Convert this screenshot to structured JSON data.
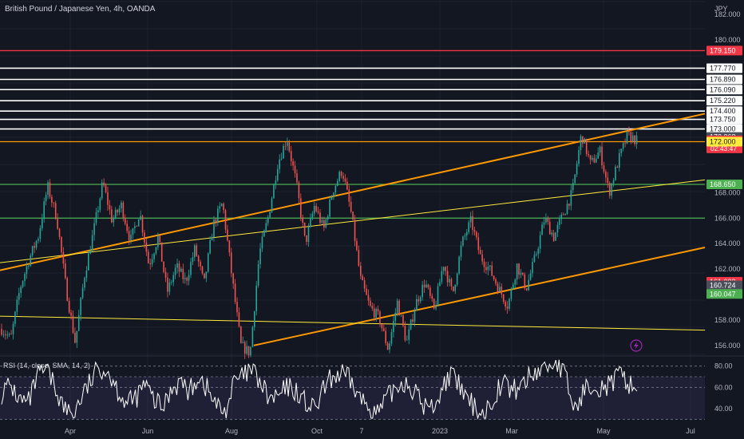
{
  "header": {
    "title": "British Pound / Japanese Yen, 4h, OANDA",
    "currency": "JPY"
  },
  "rsi_legend": "RSI (14, close, SMA, 14, 2)",
  "colors": {
    "background": "#131722",
    "axis_text": "#b2b5be",
    "candle_up": "#26a69a",
    "candle_down": "#ef5350",
    "red_line": "#f23645",
    "orange_line": "#ff9800",
    "yellow_line": "#ffeb3b",
    "green_line": "#4caf50",
    "white_line": "#ffffff",
    "rsi_line": "#ffffff"
  },
  "chart_data": {
    "type": "candlestick",
    "symbol": "GBPJPY",
    "timeframe": "4h",
    "price_axis": {
      "ylim": [
        155.3,
        183.0
      ],
      "ticks": [
        "156.000",
        "158.000",
        "162.000",
        "164.000",
        "166.000",
        "168.000",
        "180.000",
        "182.000"
      ]
    },
    "time_axis": {
      "labels": [
        "Apr",
        "Jun",
        "Aug",
        "Oct",
        "7",
        "2023",
        "Mar",
        "May",
        "Jul"
      ]
    },
    "price_path": [
      [
        "Mar",
        157.3
      ],
      [
        "Mar",
        156.5
      ],
      [
        "Apr",
        160.5
      ],
      [
        "Apr",
        162.8
      ],
      [
        "Apr",
        164.6
      ],
      [
        "Apr",
        168.5
      ],
      [
        "Apr",
        166.0
      ],
      [
        "May",
        160.5
      ],
      [
        "May",
        156.2
      ],
      [
        "May",
        161.5
      ],
      [
        "Jun",
        165.0
      ],
      [
        "Jun",
        168.8
      ],
      [
        "Jun",
        165.8
      ],
      [
        "Jun",
        167.0
      ],
      [
        "Jun",
        164.2
      ],
      [
        "Jul",
        166.5
      ],
      [
        "Jul",
        162.3
      ],
      [
        "Jul",
        164.5
      ],
      [
        "Jul",
        160.2
      ],
      [
        "Aug",
        162.2
      ],
      [
        "Aug",
        161.0
      ],
      [
        "Aug",
        163.6
      ],
      [
        "Aug",
        160.8
      ],
      [
        "Sep",
        165.5
      ],
      [
        "Sep",
        167.2
      ],
      [
        "Sep",
        161.5
      ],
      [
        "Sep",
        156.0
      ],
      [
        "Oct",
        155.4
      ],
      [
        "Oct",
        163.2
      ],
      [
        "Oct",
        166.2
      ],
      [
        "Oct",
        170.3
      ],
      [
        "Oct",
        172.3
      ],
      [
        "Oct",
        168.8
      ],
      [
        "Nov",
        164.0
      ],
      [
        "Nov",
        167.0
      ],
      [
        "Nov",
        165.1
      ],
      [
        "Nov",
        168.2
      ],
      [
        "Dec",
        169.8
      ],
      [
        "Dec",
        166.3
      ],
      [
        "Dec",
        161.2
      ],
      [
        "Dec",
        159.0
      ],
      [
        "Jan",
        158.2
      ],
      [
        "Jan",
        155.7
      ],
      [
        "Jan",
        159.4
      ],
      [
        "Jan",
        156.2
      ],
      [
        "Jan",
        159.3
      ],
      [
        "Feb",
        161.0
      ],
      [
        "Feb",
        158.7
      ],
      [
        "Feb",
        162.5
      ],
      [
        "Feb",
        160.0
      ],
      [
        "Feb",
        164.0
      ],
      [
        "Mar",
        165.8
      ],
      [
        "Mar",
        163.0
      ],
      [
        "Mar",
        162.0
      ],
      [
        "Mar",
        160.5
      ],
      [
        "Mar",
        159.1
      ],
      [
        "Apr",
        162.3
      ],
      [
        "Apr",
        160.5
      ],
      [
        "Apr",
        163.0
      ],
      [
        "Apr",
        166.0
      ],
      [
        "Apr",
        164.5
      ],
      [
        "Apr",
        166.3
      ],
      [
        "Apr",
        168.0
      ],
      [
        "May",
        172.6
      ],
      [
        "May",
        170.2
      ],
      [
        "May",
        171.3
      ],
      [
        "May",
        168.0
      ],
      [
        "May",
        170.5
      ],
      [
        "May",
        172.5
      ],
      [
        "May",
        172.1
      ]
    ],
    "horizontal_levels": [
      {
        "price": 179.15,
        "color": "red"
      },
      {
        "price": 177.77,
        "color": "white"
      },
      {
        "price": 176.89,
        "color": "white"
      },
      {
        "price": 176.09,
        "color": "white"
      },
      {
        "price": 175.22,
        "color": "white"
      },
      {
        "price": 174.4,
        "color": "white"
      },
      {
        "price": 173.75,
        "color": "white"
      },
      {
        "price": 173.0,
        "color": "white"
      },
      {
        "price": 172.0,
        "color": "orange"
      },
      {
        "price": 168.65,
        "color": "green"
      },
      {
        "price": 166.0,
        "color": "green"
      }
    ],
    "trend_lines": [
      {
        "from": [
          0.0,
          161.9
        ],
        "to": [
          1.0,
          174.2
        ],
        "color": "orange"
      },
      {
        "from": [
          0.36,
          156.0
        ],
        "to": [
          1.0,
          163.7
        ],
        "color": "orange"
      },
      {
        "from": [
          0.0,
          158.3
        ],
        "to": [
          1.0,
          157.2
        ],
        "color": "yellow"
      },
      {
        "from": [
          0.0,
          162.5
        ],
        "to": [
          1.0,
          169.0
        ],
        "color": "yellow"
      }
    ],
    "price_labels": [
      {
        "text": "179.150",
        "price": 179.15,
        "style": "red"
      },
      {
        "text": "177.770",
        "price": 177.77,
        "style": "white"
      },
      {
        "text": "176.890",
        "price": 176.89,
        "style": "white"
      },
      {
        "text": "176.090",
        "price": 176.09,
        "style": "white"
      },
      {
        "text": "175.220",
        "price": 175.22,
        "style": "white"
      },
      {
        "text": "174.400",
        "price": 174.4,
        "style": "white"
      },
      {
        "text": "173.750",
        "price": 173.75,
        "style": "white"
      },
      {
        "text": "173.000",
        "price": 173.0,
        "style": "white"
      },
      {
        "text": "172.368",
        "price": 172.368,
        "style": "gray"
      },
      {
        "text": "172.105",
        "sub": "02:43:47",
        "price": 172.105,
        "style": "red"
      },
      {
        "text": "172.000",
        "price": 172.0,
        "style": "yellow"
      },
      {
        "text": "168.650",
        "price": 168.65,
        "style": "green"
      },
      {
        "text": "161.003",
        "price": 161.003,
        "style": "red"
      },
      {
        "text": "160.724",
        "price": 160.724,
        "style": "gray"
      },
      {
        "text": "160.047",
        "price": 160.047,
        "style": "green"
      }
    ],
    "rsi": {
      "ticks": [
        "80.00",
        "60.00",
        "40.00"
      ],
      "ylim": [
        28,
        88
      ],
      "band": [
        30,
        70
      ],
      "path": [
        55,
        62,
        48,
        45,
        70,
        76,
        60,
        40,
        35,
        52,
        66,
        80,
        74,
        58,
        44,
        50,
        63,
        48,
        40,
        60,
        66,
        55,
        72,
        58,
        43,
        36,
        65,
        70,
        76,
        62,
        48,
        52,
        60,
        56,
        45,
        38,
        58,
        70,
        72,
        66,
        50,
        42,
        35,
        48,
        60,
        66,
        58,
        44,
        40,
        54,
        72,
        63,
        48,
        40,
        35,
        52,
        66,
        56,
        62,
        70,
        76,
        80,
        84,
        70,
        38,
        55,
        66,
        60,
        62,
        71,
        65,
        58
      ]
    }
  }
}
